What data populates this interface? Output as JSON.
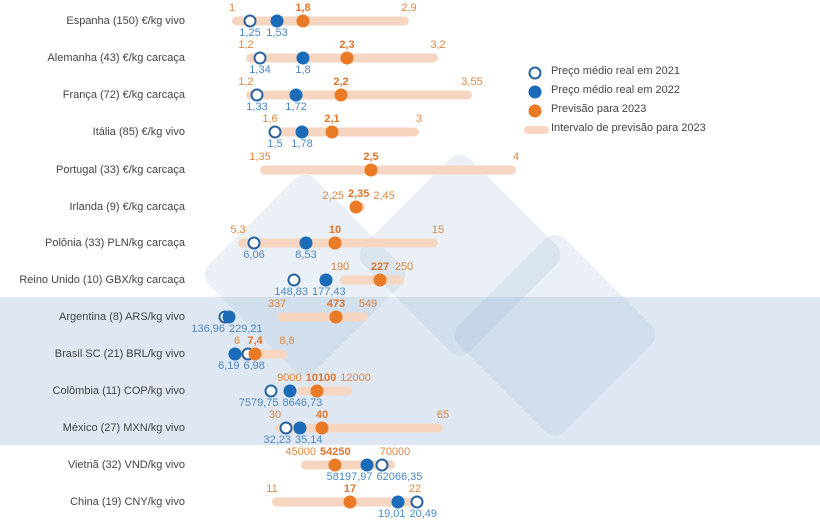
{
  "chart_data": {
    "type": "dot-range",
    "title": "",
    "legend": {
      "position": "right",
      "items": [
        {
          "key": "price_2021",
          "label": "Preço médio real em 2021",
          "marker": "open-circle",
          "color": "#2a64a0"
        },
        {
          "key": "price_2022",
          "label": "Preço médio real em 2022",
          "marker": "filled-circle",
          "color": "#1a6bb8"
        },
        {
          "key": "forecast",
          "label": "Previsão para 2023",
          "marker": "filled-circle",
          "color": "#e97b26"
        },
        {
          "key": "range",
          "label": "Intervalo de previsão para 2023",
          "marker": "bar",
          "color": "#f6d6c1"
        }
      ]
    },
    "highlight_band": {
      "from": "Argentina (8) ARS/kg vivo",
      "to": "México (27) MXN/kg vivo",
      "color": "#dfe8f2"
    },
    "rows": [
      {
        "category": "Espanha (150) €/kg vivo",
        "low": "1",
        "forecast": "1,8",
        "high": "2,9",
        "price_2021": "1,25",
        "price_2022": "1,53"
      },
      {
        "category": "Alemanha (43) €/kg carcaça",
        "low": "1,2",
        "forecast": "2,3",
        "high": "3,2",
        "price_2021": "1,34",
        "price_2022": "1,8"
      },
      {
        "category": "França (72) €/kg carcaça",
        "low": "1,2",
        "forecast": "2,2",
        "high": "3,55",
        "price_2021": "1,33",
        "price_2022": "1,72"
      },
      {
        "category": "Itália (85) €/kg vivo",
        "low": "1,6",
        "forecast": "2,1",
        "high": "3",
        "price_2021": "1,5",
        "price_2022": "1,78"
      },
      {
        "category": "Portugal (33) €/kg carcaça",
        "low": "1,35",
        "forecast": "2,5",
        "high": "4"
      },
      {
        "category": "Irlanda (9) €/kg carcaça",
        "low": "2,25",
        "forecast": "2,35",
        "high": "2,45"
      },
      {
        "category": "Polônia (33) PLN/kg carcaça",
        "low": "5,3",
        "forecast": "10",
        "high": "15",
        "price_2021": "6,06",
        "price_2022": "8,53"
      },
      {
        "category": "Reino Unido (10) GBX/kg carcaça",
        "low": "190",
        "forecast": "227",
        "high": "250",
        "price_2021": "148,83",
        "price_2022": "177,43"
      },
      {
        "category": "Argentina (8) ARS/kg vivo",
        "low": "337",
        "forecast": "473",
        "high": "549",
        "price_2021": "136,96",
        "price_2022": "229,21"
      },
      {
        "category": "Brasil SC (21) BRL/kg vivo",
        "low": "6",
        "forecast": "7,4",
        "high": "8,8",
        "price_2021": "6,98",
        "price_2022": "6,19"
      },
      {
        "category": "Colômbia (11) COP/kg vivo",
        "low": "9000",
        "forecast": "10100",
        "high": "12000",
        "price_2021": "7579,75",
        "price_2022": "8646,73"
      },
      {
        "category": "México (27) MXN/kg vivo",
        "low": "30",
        "forecast": "40",
        "high": "65",
        "price_2021": "32,23",
        "price_2022": "35,14"
      },
      {
        "category": "Vietnã (32) VND/kg vivo",
        "low": "45000",
        "forecast": "54250",
        "high": "70000",
        "price_2021": "62066,35",
        "price_2022": "58197,97"
      },
      {
        "category": "China (19) CNY/kg vivo",
        "low": "11",
        "forecast": "17",
        "high": "22",
        "price_2021": "20,49",
        "price_2022": "19,01"
      }
    ]
  }
}
